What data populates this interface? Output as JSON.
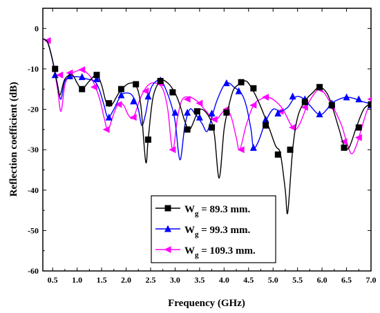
{
  "chart_data": {
    "type": "line",
    "title": "",
    "xlabel": "Frequency (GHz)",
    "ylabel": "Reflection coefficient (dB)",
    "xlim": [
      0.3,
      7.0
    ],
    "ylim": [
      -60,
      5
    ],
    "xticks": [
      "0.5",
      "1.0",
      "1.5",
      "2.0",
      "2.5",
      "3.0",
      "3.5",
      "4.0",
      "4.5",
      "5.0",
      "5.5",
      "6.0",
      "6.5",
      "7.0"
    ],
    "yticks": [
      "0",
      "-10",
      "-20",
      "-30",
      "-40",
      "-50",
      "-60"
    ],
    "grid": false,
    "legend_position": "bottom-center",
    "series": [
      {
        "name_prefix": "W",
        "name_sub": "g",
        "name_suffix": " = 89.3 mm.",
        "color": "#000000",
        "marker": "square",
        "curve": [
          [
            0.3,
            -2.5
          ],
          [
            0.4,
            -3.5
          ],
          [
            0.5,
            -8
          ],
          [
            0.6,
            -14
          ],
          [
            0.65,
            -16.5
          ],
          [
            0.75,
            -12.5
          ],
          [
            0.9,
            -11.5
          ],
          [
            1.0,
            -13.5
          ],
          [
            1.1,
            -15
          ],
          [
            1.25,
            -13
          ],
          [
            1.4,
            -11.5
          ],
          [
            1.5,
            -14
          ],
          [
            1.6,
            -18.5
          ],
          [
            1.7,
            -19
          ],
          [
            1.85,
            -16
          ],
          [
            2.0,
            -14
          ],
          [
            2.1,
            -13.5
          ],
          [
            2.2,
            -14
          ],
          [
            2.3,
            -19
          ],
          [
            2.4,
            -33
          ],
          [
            2.45,
            -27.5
          ],
          [
            2.55,
            -17
          ],
          [
            2.7,
            -13
          ],
          [
            2.85,
            -13.5
          ],
          [
            3.0,
            -16
          ],
          [
            3.1,
            -19
          ],
          [
            3.2,
            -23
          ],
          [
            3.3,
            -25
          ],
          [
            3.45,
            -21
          ],
          [
            3.55,
            -20
          ],
          [
            3.7,
            -22
          ],
          [
            3.8,
            -26
          ],
          [
            3.9,
            -37
          ],
          [
            4.0,
            -25
          ],
          [
            4.1,
            -19
          ],
          [
            4.2,
            -15
          ],
          [
            4.35,
            -13.5
          ],
          [
            4.45,
            -13
          ],
          [
            4.55,
            -14.5
          ],
          [
            4.7,
            -18
          ],
          [
            4.9,
            -24
          ],
          [
            5.05,
            -29
          ],
          [
            5.15,
            -31
          ],
          [
            5.25,
            -40
          ],
          [
            5.3,
            -45.5
          ],
          [
            5.4,
            -30
          ],
          [
            5.5,
            -22
          ],
          [
            5.65,
            -18
          ],
          [
            5.8,
            -16
          ],
          [
            5.95,
            -14.5
          ],
          [
            6.1,
            -16
          ],
          [
            6.2,
            -19
          ],
          [
            6.35,
            -25
          ],
          [
            6.45,
            -29
          ],
          [
            6.55,
            -29.5
          ],
          [
            6.7,
            -24.5
          ],
          [
            6.85,
            -20
          ],
          [
            7.0,
            -18.5
          ]
        ],
        "markers": [
          [
            0.55,
            -10
          ],
          [
            1.1,
            -15
          ],
          [
            1.4,
            -11.5
          ],
          [
            1.65,
            -18.5
          ],
          [
            1.9,
            -15
          ],
          [
            2.2,
            -13.8
          ],
          [
            2.45,
            -27.5
          ],
          [
            2.7,
            -13
          ],
          [
            2.95,
            -15.8
          ],
          [
            3.25,
            -25
          ],
          [
            3.45,
            -20.5
          ],
          [
            3.75,
            -24.5
          ],
          [
            4.05,
            -20.8
          ],
          [
            4.35,
            -13.3
          ],
          [
            4.6,
            -14.8
          ],
          [
            4.85,
            -24
          ],
          [
            5.1,
            -31.2
          ],
          [
            5.35,
            -30
          ],
          [
            5.65,
            -18.2
          ],
          [
            5.95,
            -14.5
          ],
          [
            6.2,
            -19
          ],
          [
            6.45,
            -29.5
          ],
          [
            6.75,
            -24.5
          ],
          [
            7.0,
            -18.8
          ]
        ]
      },
      {
        "name_prefix": "W",
        "name_sub": "g",
        "name_suffix": " = 99.3 mm.",
        "color": "#0000ff",
        "marker": "triangle-up",
        "curve": [
          [
            0.3,
            -2.5
          ],
          [
            0.4,
            -3.5
          ],
          [
            0.5,
            -8
          ],
          [
            0.6,
            -14
          ],
          [
            0.67,
            -17.5
          ],
          [
            0.75,
            -13
          ],
          [
            0.9,
            -12
          ],
          [
            1.05,
            -12
          ],
          [
            1.2,
            -12.5
          ],
          [
            1.35,
            -13
          ],
          [
            1.45,
            -15
          ],
          [
            1.55,
            -19
          ],
          [
            1.63,
            -22
          ],
          [
            1.75,
            -20
          ],
          [
            1.9,
            -16.5
          ],
          [
            2.05,
            -16
          ],
          [
            2.15,
            -17
          ],
          [
            2.25,
            -20
          ],
          [
            2.32,
            -24
          ],
          [
            2.4,
            -21
          ],
          [
            2.5,
            -15
          ],
          [
            2.65,
            -12.8
          ],
          [
            2.75,
            -13.5
          ],
          [
            2.9,
            -18
          ],
          [
            3.0,
            -23
          ],
          [
            3.1,
            -32.5
          ],
          [
            3.2,
            -24
          ],
          [
            3.3,
            -20
          ],
          [
            3.4,
            -21
          ],
          [
            3.55,
            -23.5
          ],
          [
            3.65,
            -25.5
          ],
          [
            3.75,
            -22
          ],
          [
            3.85,
            -18
          ],
          [
            4.0,
            -14
          ],
          [
            4.1,
            -13.5
          ],
          [
            4.2,
            -14.5
          ],
          [
            4.35,
            -16
          ],
          [
            4.45,
            -19
          ],
          [
            4.55,
            -25
          ],
          [
            4.6,
            -29.5
          ],
          [
            4.7,
            -28
          ],
          [
            4.85,
            -23
          ],
          [
            5.0,
            -20
          ],
          [
            5.15,
            -20.5
          ],
          [
            5.3,
            -19.5
          ],
          [
            5.45,
            -17
          ],
          [
            5.6,
            -17.2
          ],
          [
            5.75,
            -19
          ],
          [
            5.9,
            -21
          ],
          [
            6.0,
            -21.2
          ],
          [
            6.1,
            -20
          ],
          [
            6.2,
            -18.5
          ],
          [
            6.35,
            -17.5
          ],
          [
            6.5,
            -17
          ],
          [
            6.65,
            -17.3
          ],
          [
            6.8,
            -18
          ],
          [
            6.95,
            -18.5
          ],
          [
            7.0,
            -18.8
          ]
        ],
        "markers": [
          [
            0.55,
            -11.5
          ],
          [
            0.85,
            -11.8
          ],
          [
            1.1,
            -12
          ],
          [
            1.4,
            -12.5
          ],
          [
            1.65,
            -22
          ],
          [
            1.9,
            -16.5
          ],
          [
            2.15,
            -18
          ],
          [
            2.45,
            -16.8
          ],
          [
            2.7,
            -12.8
          ],
          [
            3.0,
            -20.8
          ],
          [
            3.25,
            -20.8
          ],
          [
            3.5,
            -22
          ],
          [
            3.75,
            -21
          ],
          [
            4.05,
            -13.5
          ],
          [
            4.3,
            -15.5
          ],
          [
            4.6,
            -29.5
          ],
          [
            4.85,
            -22.5
          ],
          [
            5.1,
            -21
          ],
          [
            5.4,
            -16.8
          ],
          [
            5.65,
            -17.5
          ],
          [
            5.95,
            -21.2
          ],
          [
            6.2,
            -18.5
          ],
          [
            6.5,
            -17
          ],
          [
            6.75,
            -17.5
          ],
          [
            7.0,
            -19
          ]
        ]
      },
      {
        "name_prefix": "W",
        "name_sub": "g",
        "name_suffix": " = 109.3 mm.",
        "color": "#ff00ff",
        "marker": "triangle-left",
        "curve": [
          [
            0.3,
            -2.5
          ],
          [
            0.4,
            -3.5
          ],
          [
            0.5,
            -8
          ],
          [
            0.6,
            -15
          ],
          [
            0.67,
            -20.5
          ],
          [
            0.75,
            -14
          ],
          [
            0.85,
            -11.5
          ],
          [
            1.0,
            -10.5
          ],
          [
            1.1,
            -10.2
          ],
          [
            1.2,
            -11
          ],
          [
            1.3,
            -12.5
          ],
          [
            1.45,
            -17
          ],
          [
            1.55,
            -22
          ],
          [
            1.63,
            -25
          ],
          [
            1.75,
            -21
          ],
          [
            1.85,
            -18.5
          ],
          [
            1.95,
            -19
          ],
          [
            2.05,
            -21.5
          ],
          [
            2.15,
            -22
          ],
          [
            2.3,
            -17
          ],
          [
            2.45,
            -14
          ],
          [
            2.6,
            -13.5
          ],
          [
            2.75,
            -15
          ],
          [
            2.85,
            -20
          ],
          [
            2.95,
            -30
          ],
          [
            3.05,
            -22
          ],
          [
            3.15,
            -17.5
          ],
          [
            3.3,
            -17
          ],
          [
            3.45,
            -18
          ],
          [
            3.6,
            -20
          ],
          [
            3.75,
            -22
          ],
          [
            3.85,
            -22.5
          ],
          [
            3.95,
            -21
          ],
          [
            4.05,
            -20
          ],
          [
            4.15,
            -22
          ],
          [
            4.25,
            -27
          ],
          [
            4.32,
            -30
          ],
          [
            4.45,
            -24
          ],
          [
            4.6,
            -19
          ],
          [
            4.75,
            -17.5
          ],
          [
            4.9,
            -17
          ],
          [
            5.05,
            -18
          ],
          [
            5.2,
            -20
          ],
          [
            5.35,
            -23.5
          ],
          [
            5.45,
            -25
          ],
          [
            5.55,
            -23.5
          ],
          [
            5.7,
            -19
          ],
          [
            5.85,
            -16
          ],
          [
            5.95,
            -15
          ],
          [
            6.05,
            -16
          ],
          [
            6.15,
            -18
          ],
          [
            6.25,
            -20
          ],
          [
            6.4,
            -24
          ],
          [
            6.5,
            -28
          ],
          [
            6.6,
            -31
          ],
          [
            6.7,
            -29
          ],
          [
            6.8,
            -25
          ],
          [
            6.9,
            -21
          ],
          [
            7.0,
            -18
          ]
        ],
        "markers": [
          [
            0.4,
            -3
          ],
          [
            0.65,
            -11.5
          ],
          [
            0.85,
            -11
          ],
          [
            1.1,
            -10.2
          ],
          [
            1.35,
            -14.5
          ],
          [
            1.6,
            -25
          ],
          [
            1.85,
            -18.8
          ],
          [
            2.15,
            -22
          ],
          [
            2.4,
            -15.5
          ],
          [
            2.7,
            -13.5
          ],
          [
            2.95,
            -30
          ],
          [
            3.25,
            -17.5
          ],
          [
            3.5,
            -18.5
          ],
          [
            3.8,
            -22.5
          ],
          [
            4.05,
            -20
          ],
          [
            4.35,
            -30
          ],
          [
            4.6,
            -19
          ],
          [
            4.85,
            -17
          ],
          [
            5.15,
            -20.5
          ],
          [
            5.4,
            -24.5
          ],
          [
            5.65,
            -19.5
          ],
          [
            5.95,
            -15
          ],
          [
            6.2,
            -19.5
          ],
          [
            6.45,
            -28
          ],
          [
            6.75,
            -27
          ],
          [
            7.0,
            -17.5
          ]
        ]
      }
    ]
  }
}
